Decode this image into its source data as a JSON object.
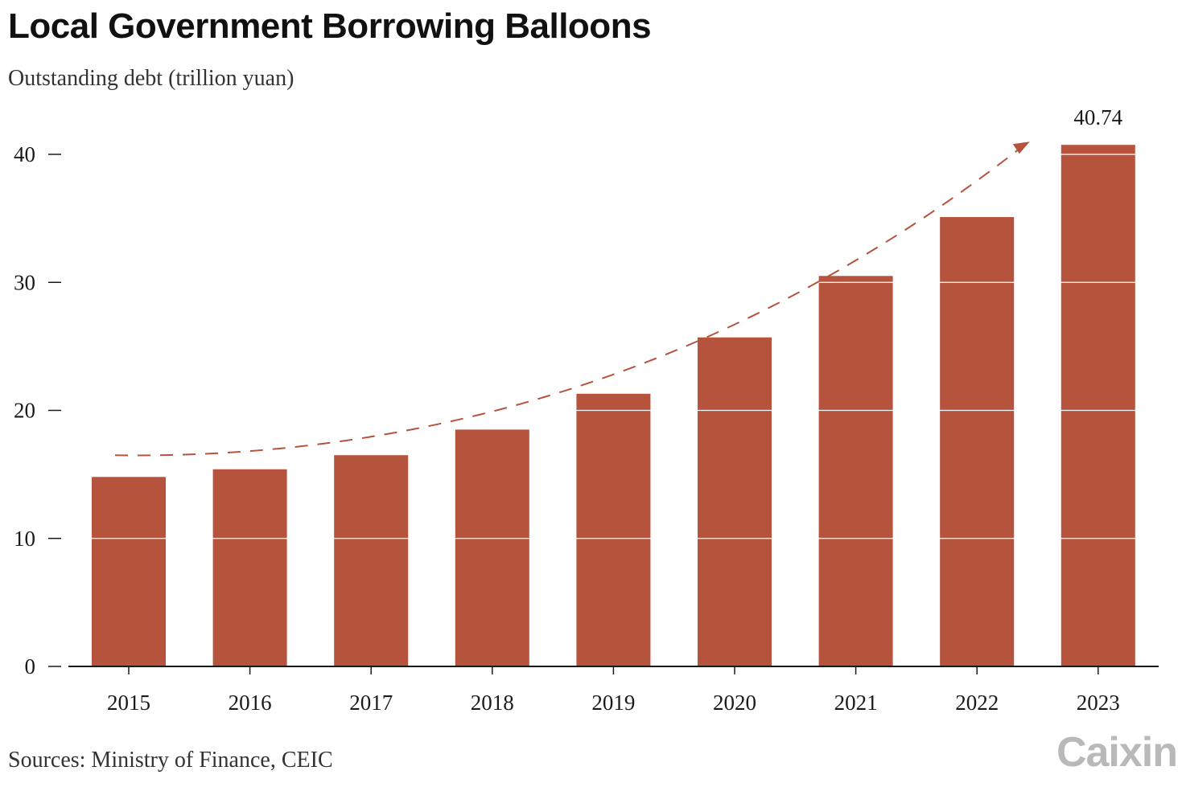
{
  "title": "Local Government Borrowing Balloons",
  "subtitle": "Outstanding debt (trillion yuan)",
  "source": "Sources: Ministry of Finance, CEIC",
  "logo_text": "Caixin",
  "colors": {
    "bar": "#b5533c",
    "trend": "#b5533c",
    "axis": "#1a1a1a",
    "gridline": "#ffffff"
  },
  "chart_data": {
    "type": "bar",
    "title": "Local Government Borrowing Balloons",
    "ylabel": "Outstanding debt (trillion yuan)",
    "xlabel": "",
    "categories": [
      "2015",
      "2016",
      "2017",
      "2018",
      "2019",
      "2020",
      "2021",
      "2022",
      "2023"
    ],
    "values": [
      14.8,
      15.4,
      16.5,
      18.5,
      21.3,
      25.7,
      30.5,
      35.1,
      40.74
    ],
    "ylim": [
      0,
      42
    ],
    "yticks": [
      0,
      10,
      20,
      30,
      40
    ],
    "grid": true,
    "annotations": [
      {
        "category": "2023",
        "text": "40.74"
      }
    ],
    "trend_arrow": {
      "style": "dashed",
      "from": "2015",
      "to": "2023"
    }
  }
}
